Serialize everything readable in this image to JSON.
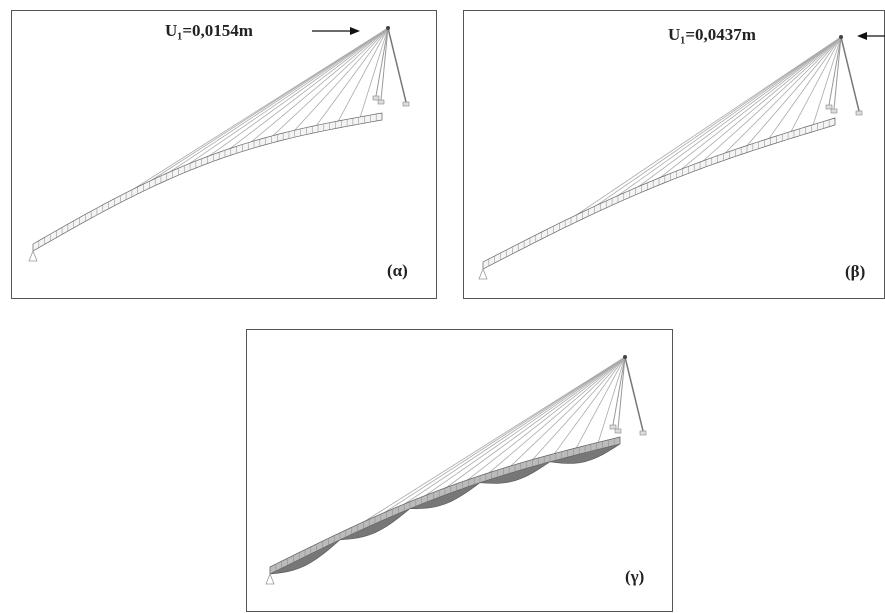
{
  "panels": [
    {
      "label": "(α)",
      "displacement": "U₁=0,0154m"
    },
    {
      "label": "(β)",
      "displacement": "U₁=0,0437m"
    },
    {
      "label": "(γ)"
    }
  ]
}
